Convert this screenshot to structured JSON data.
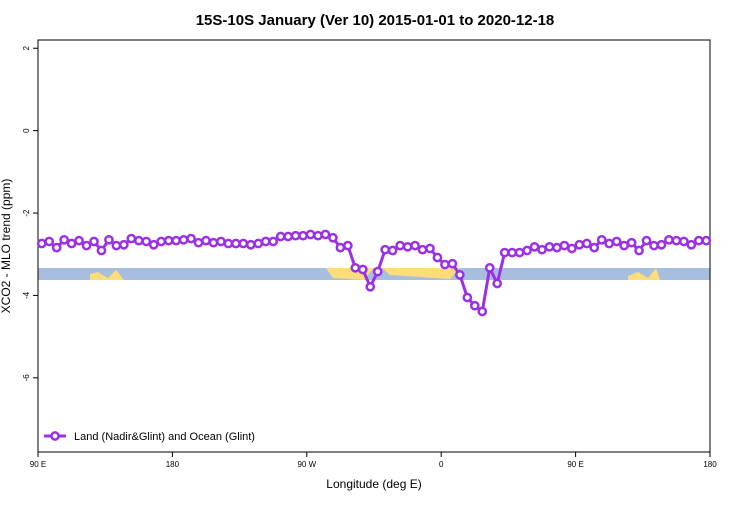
{
  "chart_data": {
    "type": "line",
    "title": "15S-10S January (Ver 10)   2015-01-01 to 2020-12-18",
    "x_label": "Longitude (deg E)",
    "y_label": "XCO2 - MLO trend (ppm)",
    "x": [
      92.5,
      97.5,
      102.5,
      107.5,
      112.5,
      117.5,
      122.5,
      127.5,
      132.5,
      137.5,
      142.5,
      147.5,
      152.5,
      157.5,
      162.5,
      167.5,
      172.5,
      177.5,
      182.5,
      187.5,
      192.5,
      197.5,
      202.5,
      207.5,
      212.5,
      217.5,
      222.5,
      227.5,
      232.5,
      237.5,
      242.5,
      247.5,
      252.5,
      257.5,
      262.5,
      267.5,
      272.5,
      277.5,
      282.5,
      287.5,
      292.5,
      297.5,
      302.5,
      307.5,
      312.5,
      317.5,
      322.5,
      327.5,
      332.5,
      337.5,
      342.5,
      347.5,
      352.5,
      357.5,
      362.5,
      367.5,
      372.5,
      377.5,
      382.5,
      387.5,
      392.5,
      397.5,
      402.5,
      407.5,
      412.5,
      417.5,
      422.5,
      427.5,
      432.5,
      437.5,
      442.5,
      447.5,
      452.5,
      457.5,
      462.5,
      467.5,
      472.5,
      477.5,
      482.5,
      487.5,
      492.5,
      497.5,
      502.5,
      507.5,
      512.5,
      517.5,
      522.5,
      527.5,
      532.5,
      537.5
    ],
    "series": [
      {
        "name": "Land (Nadir&Glint) and Ocean (Glint)",
        "color": "#9b30e6",
        "values": [
          -2.74,
          -2.69,
          -2.84,
          -2.65,
          -2.74,
          -2.67,
          -2.79,
          -2.69,
          -2.91,
          -2.65,
          -2.79,
          -2.77,
          -2.62,
          -2.67,
          -2.69,
          -2.77,
          -2.69,
          -2.67,
          -2.67,
          -2.65,
          -2.62,
          -2.72,
          -2.67,
          -2.72,
          -2.69,
          -2.74,
          -2.74,
          -2.74,
          -2.77,
          -2.74,
          -2.69,
          -2.69,
          -2.57,
          -2.57,
          -2.55,
          -2.55,
          -2.52,
          -2.55,
          -2.52,
          -2.6,
          -2.84,
          -2.79,
          -3.33,
          -3.37,
          -3.79,
          -3.42,
          -2.89,
          -2.91,
          -2.79,
          -2.82,
          -2.79,
          -2.89,
          -2.86,
          -3.08,
          -3.25,
          -3.23,
          -3.5,
          -4.05,
          -4.25,
          -4.39,
          -3.33,
          -3.71,
          -2.96,
          -2.96,
          -2.96,
          -2.91,
          -2.82,
          -2.89,
          -2.82,
          -2.84,
          -2.79,
          -2.86,
          -2.77,
          -2.74,
          -2.84,
          -2.65,
          -2.74,
          -2.69,
          -2.79,
          -2.72,
          -2.91,
          -2.67,
          -2.79,
          -2.77,
          -2.65,
          -2.67,
          -2.69,
          -2.77,
          -2.67,
          -2.67
        ]
      }
    ],
    "xlim": [
      90,
      540
    ],
    "xticks": [
      {
        "value": 90,
        "label": "90 E"
      },
      180,
      {
        "value": 270,
        "label": "90 W"
      },
      {
        "value": 360,
        "label": "0"
      },
      {
        "value": 450,
        "label": "90 E"
      },
      {
        "value": 540,
        "label": "180"
      }
    ],
    "ylim": [
      -7.8,
      2.2
    ],
    "yticks": [
      -6,
      -4,
      -2,
      0,
      2
    ],
    "legend": "bottom-left"
  }
}
